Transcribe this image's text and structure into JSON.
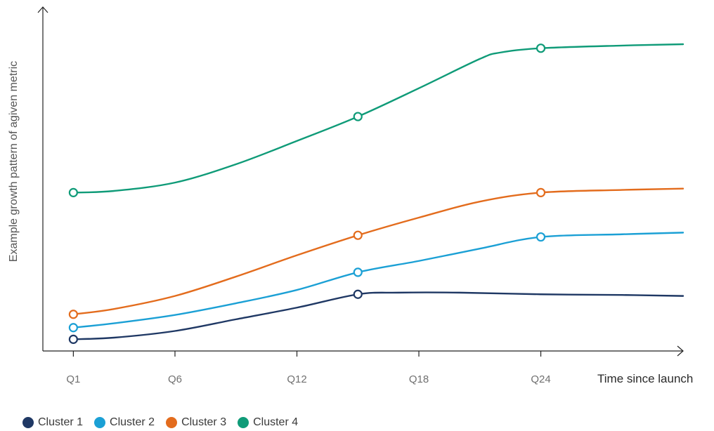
{
  "chart_data": {
    "type": "line",
    "xlabel": "Time since launch",
    "ylabel": "Example growth pattern of agiven metric",
    "x_ticks": [
      "Q1",
      "Q6",
      "Q12",
      "Q18",
      "Q24"
    ],
    "x_tick_values": [
      1,
      6,
      12,
      18,
      24
    ],
    "xlim": [
      -0.5,
      31
    ],
    "ylim": [
      0,
      100
    ],
    "grid": false,
    "legend_position": "bottom-left",
    "series": [
      {
        "name": "Cluster 1",
        "color": "#1f3864",
        "x": [
          1,
          3,
          6,
          9,
          12,
          15,
          17,
          20,
          24,
          28,
          31
        ],
        "y": [
          3.5,
          4,
          6,
          9.5,
          13,
          17,
          17.5,
          17.5,
          17,
          16.8,
          16.5
        ],
        "markers": [
          1,
          15
        ]
      },
      {
        "name": "Cluster 2",
        "color": "#1ba0d5",
        "x": [
          1,
          3,
          6,
          9,
          12,
          15,
          18,
          21,
          24,
          28,
          31
        ],
        "y": [
          7,
          8.3,
          10.8,
          14.3,
          18.3,
          23.6,
          27,
          30.7,
          34.2,
          35,
          35.5
        ],
        "markers": [
          1,
          15,
          24
        ]
      },
      {
        "name": "Cluster 3",
        "color": "#e36c1d",
        "x": [
          1,
          3,
          6,
          9,
          12,
          15,
          18,
          21,
          24,
          28,
          31
        ],
        "y": [
          11,
          12.6,
          16.5,
          22.3,
          28.7,
          34.7,
          40,
          44.8,
          47.5,
          48.3,
          48.7
        ],
        "markers": [
          1,
          15,
          24
        ]
      },
      {
        "name": "Cluster 4",
        "color": "#0f9b78",
        "x": [
          1,
          3,
          6,
          9,
          12,
          15,
          18,
          21,
          22,
          24,
          28,
          31
        ],
        "y": [
          47.5,
          48,
          50.5,
          56,
          63,
          70.3,
          78.8,
          87.6,
          89.5,
          90.8,
          91.6,
          92
        ],
        "markers": [
          1,
          15,
          24
        ]
      }
    ]
  }
}
